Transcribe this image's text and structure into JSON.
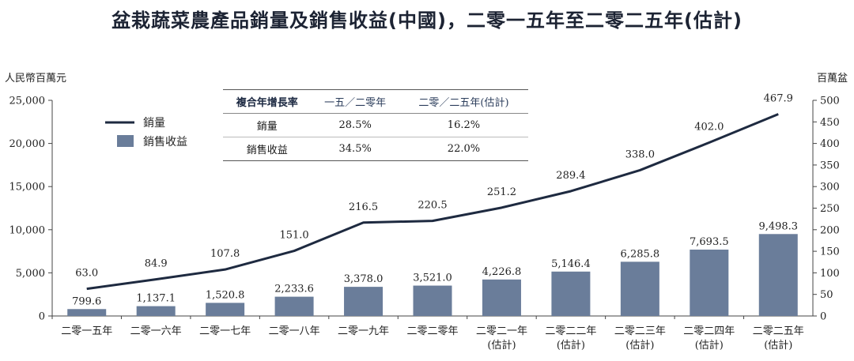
{
  "title": "盆栽蔬菜農產品銷量及銷售收益(中國)，二零一五年至二零二五年(估計)",
  "chart_data": {
    "type": "bar",
    "categories": [
      [
        "二零一五年"
      ],
      [
        "二零一六年"
      ],
      [
        "二零一七年"
      ],
      [
        "二零一八年"
      ],
      [
        "二零一九年"
      ],
      [
        "二零二零年"
      ],
      [
        "二零二一年",
        "(估計)"
      ],
      [
        "二零二二年",
        "(估計)"
      ],
      [
        "二零二三年",
        "(估計)"
      ],
      [
        "二零二四年",
        "(估計)"
      ],
      [
        "二零二五年",
        "(估計)"
      ]
    ],
    "series": [
      {
        "name": "銷售收益",
        "type": "bar",
        "axis": "left",
        "color": "#6a7d9a",
        "values": [
          799.6,
          1137.1,
          1520.8,
          2233.6,
          3378.0,
          3521.0,
          4226.8,
          5146.4,
          6285.8,
          7693.5,
          9498.3
        ],
        "labels": [
          "799.6",
          "1,137.1",
          "1,520.8",
          "2,233.6",
          "3,378.0",
          "3,521.0",
          "4,226.8",
          "5,146.4",
          "6,285.8",
          "7,693.5",
          "9,498.3"
        ]
      },
      {
        "name": "銷量",
        "type": "line",
        "axis": "right",
        "color": "#1e2a40",
        "values": [
          63.0,
          84.9,
          107.8,
          151.0,
          216.5,
          220.5,
          251.2,
          289.4,
          338.0,
          402.0,
          467.9
        ],
        "labels": [
          "63.0",
          "84.9",
          "107.8",
          "151.0",
          "216.5",
          "220.5",
          "251.2",
          "289.4",
          "338.0",
          "402.0",
          "467.9"
        ]
      }
    ],
    "y_left": {
      "label": "人民幣百萬元",
      "range": [
        0,
        25000
      ],
      "ticks": [
        0,
        5000,
        10000,
        15000,
        20000,
        25000
      ],
      "tick_labels": [
        "0",
        "5,000",
        "10,000",
        "15,000",
        "20,000",
        "25,000"
      ]
    },
    "y_right": {
      "label": "百萬盆",
      "range": [
        0,
        500
      ],
      "ticks": [
        0,
        50,
        100,
        150,
        200,
        250,
        300,
        350,
        400,
        450,
        500
      ],
      "tick_labels": [
        "0",
        "50",
        "100",
        "150",
        "200",
        "250",
        "300",
        "350",
        "400",
        "450",
        "500"
      ]
    },
    "grid": false,
    "legend": {
      "placement": "top-left",
      "items": [
        {
          "label": "銷量",
          "kind": "line"
        },
        {
          "label": "銷售收益",
          "kind": "bar"
        }
      ]
    },
    "cagr_table": {
      "headers": [
        "複合年增長率",
        "一五／二零年",
        "二零／二五年(估計)"
      ],
      "rows": [
        [
          "銷量",
          "28.5%",
          "16.2%"
        ],
        [
          "銷售收益",
          "34.5%",
          "22.0%"
        ]
      ]
    }
  }
}
